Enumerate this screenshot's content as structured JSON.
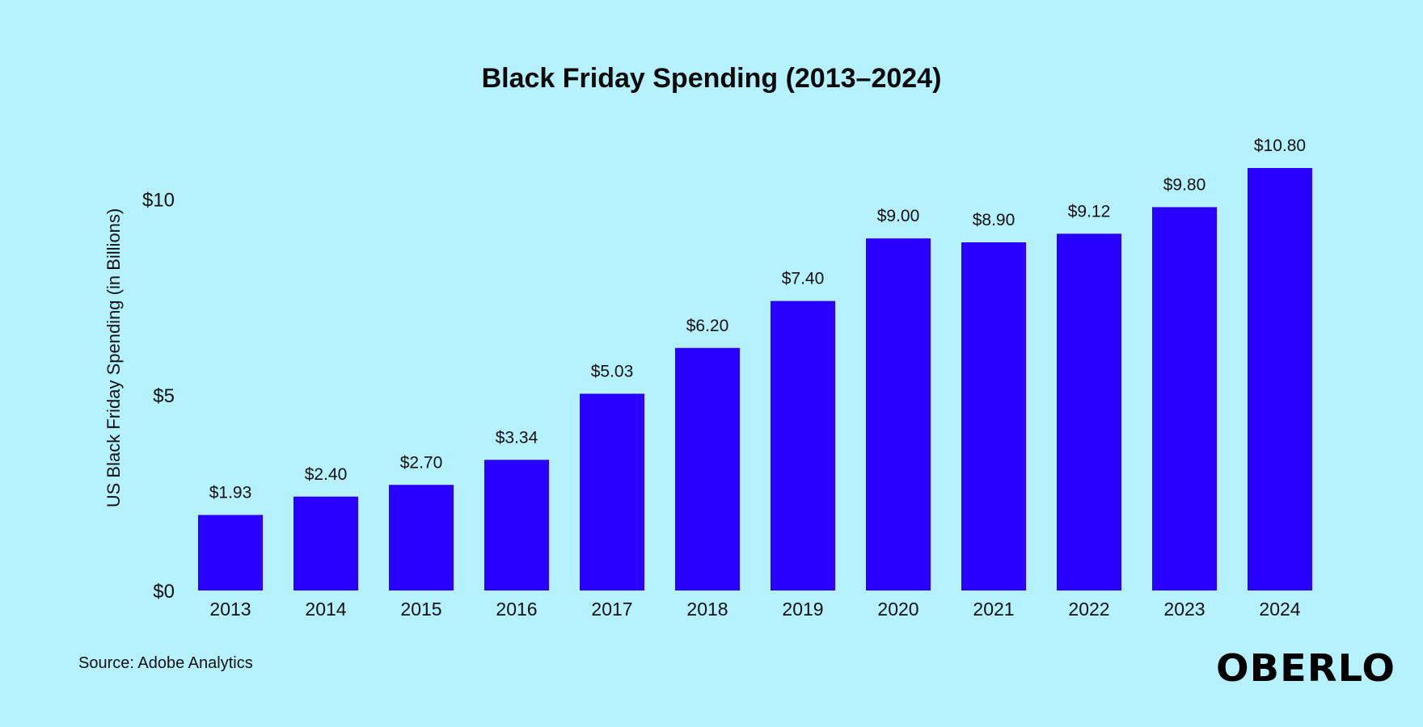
{
  "page": {
    "background": "#b5f1fe",
    "source": "Source: Adobe Analytics",
    "brand": "OBERLO"
  },
  "chart_data": {
    "type": "bar",
    "title": "Black Friday Spending (2013–2024)",
    "xlabel": "",
    "ylabel": "US Black Friday Spending (in Billions)",
    "categories": [
      "2013",
      "2014",
      "2015",
      "2016",
      "2017",
      "2018",
      "2019",
      "2020",
      "2021",
      "2022",
      "2023",
      "2024"
    ],
    "values": [
      1.93,
      2.4,
      2.7,
      3.34,
      5.03,
      6.2,
      7.4,
      9.0,
      8.9,
      9.12,
      9.8,
      10.8
    ],
    "value_labels": [
      "$1.93",
      "$2.40",
      "$2.70",
      "$3.34",
      "$5.03",
      "$6.20",
      "$7.40",
      "$9.00",
      "$8.90",
      "$9.12",
      "$9.80",
      "$10.80"
    ],
    "yticks": [
      0,
      5,
      10
    ],
    "ytick_labels": [
      "$0",
      "$5",
      "$10"
    ],
    "ylim": [
      0,
      10.8
    ],
    "grid": false,
    "legend": "none",
    "bar_color": "#2900ff"
  }
}
